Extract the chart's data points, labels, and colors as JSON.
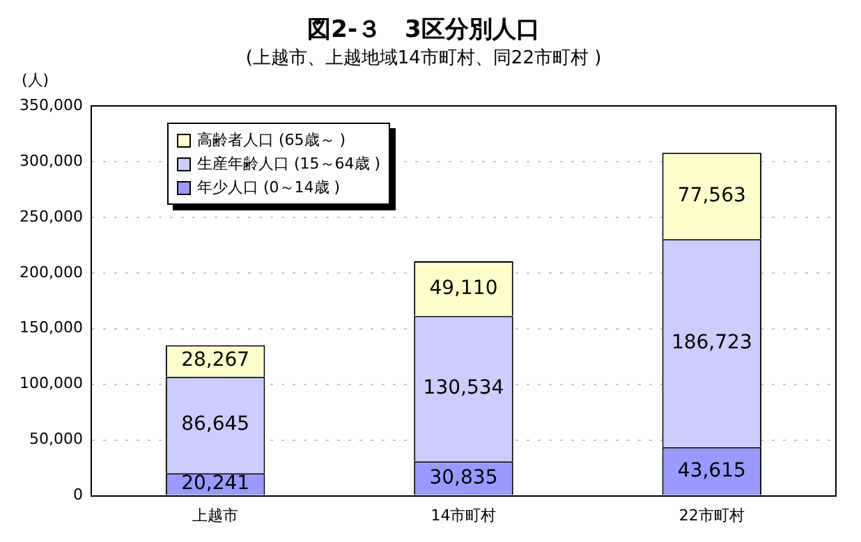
{
  "chart_data": {
    "type": "bar",
    "title": "図2-３　3区分別人口",
    "subtitle": "(上越市、上越地域14市町村、同22市町村 )",
    "ylabel": "(人)",
    "categories": [
      "上越市",
      "14市町村",
      "22市町村"
    ],
    "series": [
      {
        "name": "年少人口 (0～14歳 )",
        "color": "#9999ff",
        "values": [
          20241,
          30835,
          43615
        ],
        "value_labels": [
          "20,241",
          "30,835",
          "43,615"
        ]
      },
      {
        "name": "生産年齢人口 (15～64歳 )",
        "color": "#ccccff",
        "values": [
          86645,
          130534,
          186723
        ],
        "value_labels": [
          "86,645",
          "130,534",
          "186,723"
        ]
      },
      {
        "name": "高齢者人口 (65歳～ )",
        "color": "#ffffcc",
        "values": [
          28267,
          49110,
          77563
        ],
        "value_labels": [
          "28,267",
          "49,110",
          "77,563"
        ]
      }
    ],
    "stacked": true,
    "ylim": [
      0,
      350000
    ],
    "yticks": [
      0,
      {
        "value": 50000,
        "label": "50,000"
      },
      {
        "value": 100000,
        "label": "100,000"
      },
      {
        "value": 150000,
        "label": "150,000"
      },
      {
        "value": 200000,
        "label": "200,000"
      },
      {
        "value": 250000,
        "label": "250,000"
      },
      {
        "value": 300000,
        "label": "300,000"
      },
      {
        "value": 350000,
        "label": "350,000"
      }
    ],
    "grid": "y",
    "legend": "top left"
  }
}
